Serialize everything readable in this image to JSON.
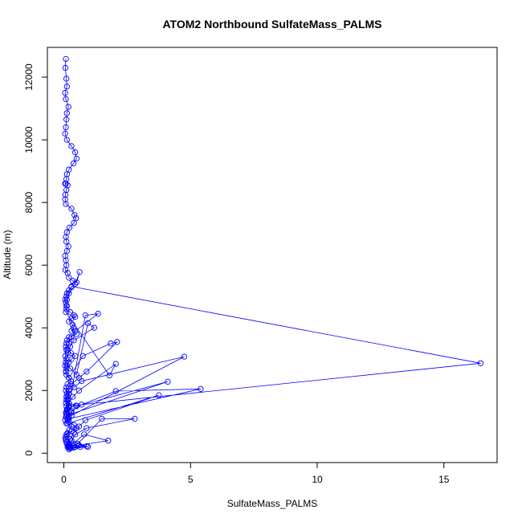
{
  "chart_data": {
    "type": "scatter",
    "title": "ATOM2 Northbound SulfateMass_PALMS",
    "xlabel": "SulfateMass_PALMS",
    "ylabel": "Altitude (m)",
    "xlim": [
      -0.65,
      17.1
    ],
    "ylim": [
      -300,
      12950
    ],
    "xticks": [
      0,
      5,
      10,
      15
    ],
    "yticks": [
      0,
      2000,
      4000,
      6000,
      8000,
      10000,
      12000
    ],
    "grid": false,
    "legend": "none",
    "color": "#0000ff",
    "marker": "open-circle",
    "connect_points": true,
    "series": [
      {
        "x": [
          0.08,
          0.06,
          0.1,
          0.12,
          0.05,
          0.08,
          0.18,
          0.12,
          0.1,
          0.08,
          0.05,
          0.12,
          0.3,
          0.45,
          0.5,
          0.38,
          0.2,
          0.12,
          0.1,
          0.05,
          0.08,
          0.15,
          0.1,
          0.06,
          0.05,
          0.08,
          0.3,
          0.42,
          0.48,
          0.4,
          0.22,
          0.12,
          0.08,
          0.1,
          0.18,
          0.12,
          0.05,
          0.08,
          0.1,
          0.06,
          0.15,
          0.2,
          0.35,
          0.5,
          0.62,
          0.45,
          0.3,
          0.2,
          0.12,
          0.1,
          0.05,
          0.08,
          0.12,
          0.1,
          0.25,
          0.4,
          0.45,
          0.3,
          0.2,
          0.35,
          0.38,
          0.3,
          0.5,
          0.2,
          0.12,
          0.1,
          0.08,
          0.15,
          0.28,
          0.45,
          0.3,
          0.2,
          0.12,
          0.1,
          0.08,
          0.1,
          0.2,
          0.28,
          0.15,
          0.1,
          0.08,
          0.12,
          0.15,
          0.1,
          0.2,
          0.48,
          0.2,
          0.12,
          0.1,
          0.08,
          0.05,
          0.1,
          0.3,
          0.22,
          0.15,
          0.12,
          0.08,
          0.1,
          0.35,
          0.65,
          0.4,
          0.2,
          0.12,
          0.08,
          0.06,
          0.1,
          0.3,
          0.5,
          0.4,
          0.2,
          0.15,
          0.1,
          0.08,
          0.12,
          0.2,
          0.85,
          1.35,
          0.45,
          0.3,
          0.2,
          0.1,
          0.06,
          0.08,
          0.25,
          0.5,
          0.95,
          1.2,
          0.4,
          0.25,
          0.15,
          0.1,
          0.05,
          0.08,
          0.2,
          0.75,
          1.85,
          2.1,
          0.9,
          0.6,
          0.3,
          0.2,
          0.1,
          0.08,
          0.15,
          0.3,
          4.75,
          0.7,
          0.4,
          0.2,
          0.15,
          0.1,
          16.45,
          0.3,
          0.2,
          0.12,
          0.1,
          0.08,
          1.8,
          2.05,
          0.6,
          0.35,
          0.2,
          0.15,
          0.1,
          4.1,
          0.5,
          0.3,
          0.2,
          5.4,
          2.05,
          0.7,
          0.3,
          0.2,
          0.15,
          3.75,
          0.85,
          0.6,
          0.4,
          0.25,
          0.18,
          0.15,
          0.55,
          1.5,
          2.8,
          0.9,
          0.45,
          0.3,
          0.22,
          0.18,
          0.8,
          1.75,
          0.6,
          0.9,
          0.45,
          0.3,
          0.25,
          0.2,
          0.18,
          0.22,
          0.3,
          0.95,
          0.25,
          0.2
        ],
        "y": [
          12580,
          12300,
          11950,
          11700,
          11500,
          11300,
          11050,
          10850,
          10650,
          10400,
          10200,
          10000,
          9800,
          9600,
          9400,
          9250,
          9050,
          8900,
          8750,
          8600,
          8600,
          8550,
          8400,
          8250,
          8100,
          7950,
          7800,
          7600,
          7500,
          7350,
          7200,
          7050,
          6900,
          6750,
          6600,
          6450,
          6300,
          6150,
          6000,
          5850,
          5750,
          5600,
          5500,
          5450,
          5780,
          5400,
          5300,
          5200,
          5100,
          5000,
          4900,
          4800,
          4700,
          4600,
          4500,
          4400,
          4350,
          4300,
          4200,
          4100,
          4000,
          3900,
          3800,
          3700,
          3600,
          3500,
          3400,
          3300,
          3200,
          3100,
          3000,
          2900,
          2800,
          2700,
          2600,
          2500,
          2400,
          2300,
          2200,
          2100,
          2000,
          1900,
          1800,
          1700,
          1600,
          1520,
          1450,
          1350,
          1250,
          1150,
          1050,
          950,
          850,
          750,
          650,
          550,
          450,
          350,
          250,
          200,
          180,
          220,
          300,
          400,
          500,
          600,
          700,
          800,
          900,
          1000,
          1100,
          1200,
          1300,
          1400,
          1500,
          4400,
          4450,
          3900,
          3700,
          3500,
          3300,
          3100,
          2900,
          2700,
          2500,
          4150,
          4000,
          3600,
          3400,
          3200,
          3000,
          2800,
          2600,
          2400,
          3100,
          3500,
          3550,
          2600,
          2400,
          2200,
          2000,
          1800,
          1600,
          1400,
          1200,
          3080,
          2300,
          2100,
          1900,
          1700,
          1500,
          2870,
          5320,
          5100,
          4900,
          4700,
          4500,
          2480,
          2850,
          2000,
          1800,
          1600,
          1400,
          1200,
          2280,
          1500,
          1300,
          1100,
          2050,
          1980,
          1550,
          1350,
          1150,
          950,
          1850,
          1050,
          850,
          650,
          450,
          250,
          200,
          300,
          1100,
          1100,
          800,
          600,
          400,
          200,
          180,
          600,
          400,
          250,
          220,
          200,
          180,
          200,
          220,
          250,
          300,
          400,
          200,
          150,
          120
        ]
      }
    ]
  }
}
